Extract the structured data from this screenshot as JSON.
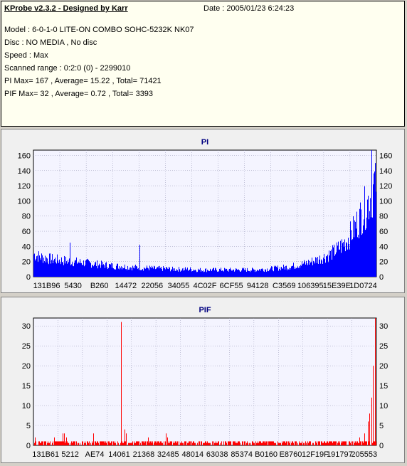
{
  "header": {
    "title": "KProbe v2.3.2 - Designed by Karr",
    "date": "Date : 2005/01/23 6:24:23",
    "lines": [
      "Model : 6-0-1-0 LITE-ON COMBO SOHC-5232K NK07",
      "Disc : NO MEDIA , No disc",
      "Speed : Max",
      "Scanned range : 0:2:0 (0) - 2299010",
      "PI Max= 167 , Average= 15.22 , Total= 71421",
      "PIF Max= 32 , Average= 0.72 , Total= 3393"
    ]
  },
  "chart_data": [
    {
      "type": "bar",
      "title": "PI",
      "color": "#0000ff",
      "ylim": [
        0,
        167
      ],
      "yticks": [
        0,
        20,
        40,
        60,
        80,
        100,
        120,
        140,
        160
      ],
      "xtick_labels": [
        "131B96",
        "5430",
        "B260",
        "14472",
        "22056",
        "34055",
        "4C02F",
        "6CF55",
        "94128",
        "C3569",
        "106395",
        "15E39E",
        "1D0724"
      ],
      "grid": true,
      "baseline_profile": [
        36,
        32,
        30,
        28,
        27,
        26,
        25,
        24,
        23,
        22,
        21,
        20,
        19,
        18,
        17,
        17,
        16,
        15,
        15,
        14,
        14,
        13,
        13,
        13,
        12,
        12,
        12,
        12,
        11,
        11,
        11,
        11,
        11,
        11,
        11,
        11,
        11,
        11,
        11,
        12,
        12,
        13,
        14,
        15,
        16,
        18,
        20,
        22,
        25,
        28,
        32,
        36,
        42,
        50,
        60,
        75,
        92,
        110,
        130,
        160
      ],
      "spikes": [
        [
          0.105,
          45
        ],
        [
          0.31,
          42
        ],
        [
          0.985,
          167
        ],
        [
          0.995,
          150
        ]
      ]
    },
    {
      "type": "bar",
      "title": "PIF",
      "color": "#ff0000",
      "ylim": [
        0,
        32
      ],
      "yticks": [
        0,
        5,
        10,
        15,
        20,
        25,
        30
      ],
      "xtick_labels": [
        "131B61",
        "5212",
        "AE74",
        "14061",
        "21368",
        "32485",
        "48014",
        "63038",
        "85374",
        "B0160",
        "E8760",
        "12F19F",
        "191797",
        "205553"
      ],
      "grid": true,
      "spikes": [
        [
          0.005,
          2
        ],
        [
          0.06,
          2
        ],
        [
          0.085,
          3
        ],
        [
          0.09,
          3
        ],
        [
          0.095,
          2
        ],
        [
          0.175,
          3
        ],
        [
          0.255,
          31
        ],
        [
          0.265,
          4
        ],
        [
          0.27,
          3
        ],
        [
          0.335,
          2
        ],
        [
          0.385,
          3
        ],
        [
          0.39,
          2
        ],
        [
          0.95,
          2
        ],
        [
          0.965,
          3
        ],
        [
          0.975,
          6
        ],
        [
          0.98,
          8
        ],
        [
          0.985,
          12
        ],
        [
          0.99,
          20
        ],
        [
          0.995,
          32
        ],
        [
          1.0,
          28
        ]
      ]
    }
  ]
}
